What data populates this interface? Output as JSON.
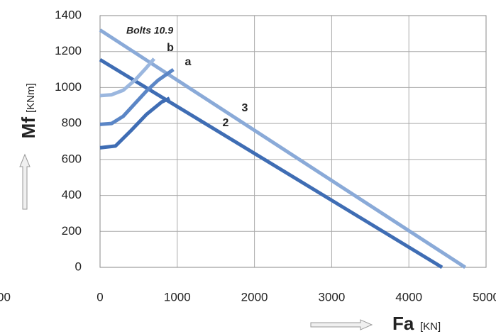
{
  "chart_data": {
    "type": "line",
    "x_label": "Fa",
    "x_unit": "[KN]",
    "y_label": "Mf",
    "y_unit": "[KNm]",
    "annotations": [
      "Bolts 10.9",
      "00"
    ],
    "xlim": [
      0,
      5000
    ],
    "xticks": [
      0,
      1000,
      2000,
      3000,
      4000,
      5000
    ],
    "ylim": [
      0,
      1400
    ],
    "yticks": [
      0,
      200,
      400,
      600,
      800,
      1000,
      1200,
      1400
    ],
    "grid": true,
    "series": [
      {
        "name": "2",
        "color": "#3f6db4",
        "x": [
          0,
          4430
        ],
        "values": [
          1155,
          0
        ]
      },
      {
        "name": "3",
        "color": "#8aaad8",
        "x": [
          0,
          4730
        ],
        "values": [
          1320,
          0
        ]
      },
      {
        "name": "a",
        "color": "#5b86c6",
        "x": [
          0,
          150,
          300,
          450,
          600,
          750,
          950
        ],
        "values": [
          795,
          800,
          840,
          910,
          980,
          1040,
          1100
        ]
      },
      {
        "name": "b",
        "color": "#9bb7df",
        "x": [
          0,
          150,
          300,
          450,
          600,
          700
        ],
        "values": [
          955,
          960,
          985,
          1040,
          1110,
          1160
        ]
      },
      {
        "color": "#3f6db4",
        "x": [
          0,
          200,
          400,
          600,
          800,
          900
        ],
        "values": [
          665,
          675,
          760,
          850,
          920,
          940
        ]
      }
    ]
  }
}
